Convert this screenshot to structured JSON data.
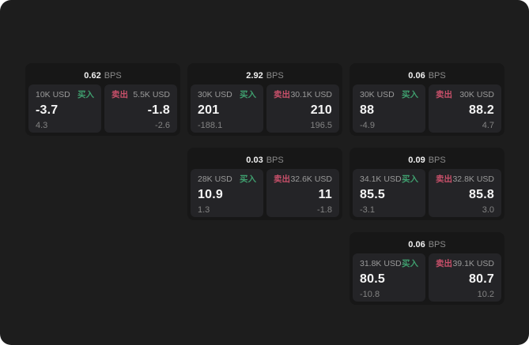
{
  "colors": {
    "panel_bg": "#1d1d1d",
    "card_bg": "#171717",
    "subpanel_bg": "#242427",
    "buy": "#3f9e6e",
    "sell": "#c8506a"
  },
  "cards": [
    {
      "bps": "0.62",
      "unit": "BPS",
      "buy": {
        "amount": "10K USD",
        "side": "买入",
        "price": "-3.7",
        "delta": "4.3"
      },
      "sell": {
        "amount": "5.5K USD",
        "side": "卖出",
        "price": "-1.8",
        "delta": "-2.6"
      }
    },
    {
      "bps": "2.92",
      "unit": "BPS",
      "buy": {
        "amount": "30K USD",
        "side": "买入",
        "price": "201",
        "delta": "-188.1"
      },
      "sell": {
        "amount": "30.1K USD",
        "side": "卖出",
        "price": "210",
        "delta": "196.5"
      }
    },
    {
      "bps": "0.06",
      "unit": "BPS",
      "buy": {
        "amount": "30K USD",
        "side": "买入",
        "price": "88",
        "delta": "-4.9"
      },
      "sell": {
        "amount": "30K USD",
        "side": "卖出",
        "price": "88.2",
        "delta": "4.7"
      }
    },
    {
      "bps": "0.03",
      "unit": "BPS",
      "buy": {
        "amount": "28K USD",
        "side": "买入",
        "price": "10.9",
        "delta": "1.3"
      },
      "sell": {
        "amount": "32.6K USD",
        "side": "卖出",
        "price": "11",
        "delta": "-1.8"
      }
    },
    {
      "bps": "0.09",
      "unit": "BPS",
      "buy": {
        "amount": "34.1K USD",
        "side": "买入",
        "price": "85.5",
        "delta": "-3.1"
      },
      "sell": {
        "amount": "32.8K USD",
        "side": "卖出",
        "price": "85.8",
        "delta": "3.0"
      }
    },
    {
      "bps": "0.06",
      "unit": "BPS",
      "buy": {
        "amount": "31.8K USD",
        "side": "买入",
        "price": "80.5",
        "delta": "-10.8"
      },
      "sell": {
        "amount": "39.1K USD",
        "side": "卖出",
        "price": "80.7",
        "delta": "10.2"
      }
    }
  ]
}
